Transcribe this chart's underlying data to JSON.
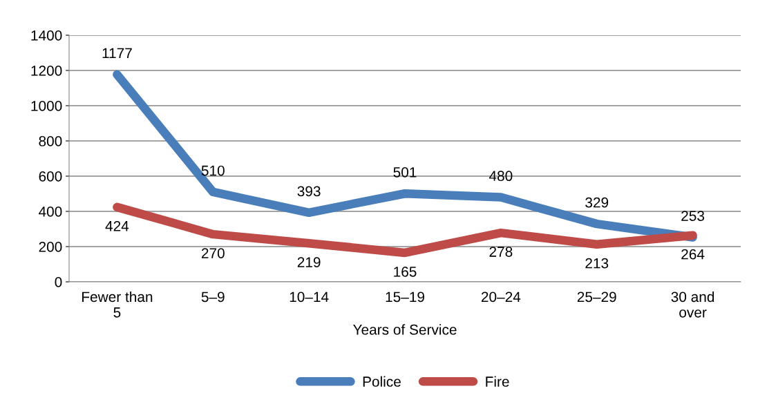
{
  "chart_data": {
    "type": "line",
    "xlabel": "Years of Service",
    "categories": [
      "Fewer than\n5",
      "5–9",
      "10–14",
      "15–19",
      "20–24",
      "25–29",
      "30 and\nover"
    ],
    "series": [
      {
        "name": "Police",
        "color": "#4a7ebb",
        "values": [
          1177,
          510,
          393,
          501,
          480,
          329,
          253
        ]
      },
      {
        "name": "Fire",
        "color": "#be4b48",
        "values": [
          424,
          270,
          219,
          165,
          278,
          213,
          264
        ]
      }
    ],
    "ylim": [
      0,
      1400
    ],
    "yticks": [
      0,
      200,
      400,
      600,
      800,
      1000,
      1200,
      1400
    ],
    "grid": "y",
    "legend": "bottom",
    "data_labels": true,
    "line_style": "solid"
  }
}
